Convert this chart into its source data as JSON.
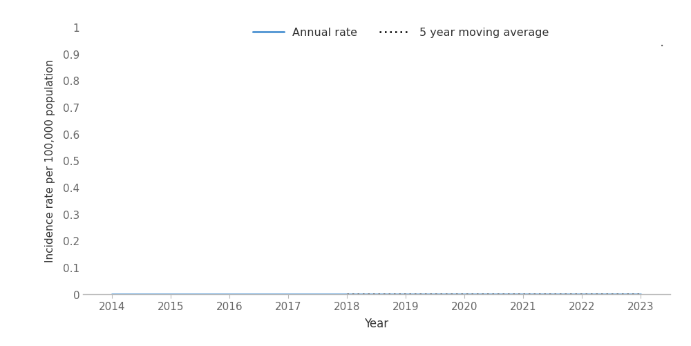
{
  "years": [
    2014,
    2015,
    2016,
    2017,
    2018,
    2019,
    2020,
    2021,
    2022,
    2023
  ],
  "annual_rate": [
    0.0,
    0.0,
    0.0,
    0.0,
    0.0,
    0.0,
    0.0,
    0.0,
    0.0,
    0.0
  ],
  "moving_avg_years": [
    2018,
    2019,
    2020,
    2021,
    2022,
    2023
  ],
  "moving_avg": [
    0.0,
    0.0,
    0.0,
    0.0,
    0.0,
    0.0
  ],
  "annual_rate_color": "#5B9BD5",
  "moving_avg_color": "#000000",
  "ylabel": "Incidence rate per 100,000 population",
  "xlabel": "Year",
  "legend_annual": "Annual rate",
  "legend_moving": "5 year moving average",
  "ylim": [
    0,
    1
  ],
  "ytick_values": [
    0,
    0.1,
    0.2,
    0.3,
    0.4,
    0.5,
    0.6,
    0.7,
    0.8,
    0.9,
    1.0
  ],
  "ytick_labels": [
    "0",
    "0.1",
    "0.2",
    "0.3",
    "0.4",
    "0.5",
    "0.6",
    "0.7",
    "0.8",
    "0.9",
    "1"
  ],
  "xlim": [
    2013.5,
    2023.5
  ],
  "xticks": [
    2014,
    2015,
    2016,
    2017,
    2018,
    2019,
    2020,
    2021,
    2022,
    2023
  ],
  "background_color": "#ffffff",
  "axis_line_color": "#BBBBBB",
  "tick_color": "#666666",
  "label_fontsize": 12,
  "tick_fontsize": 11
}
